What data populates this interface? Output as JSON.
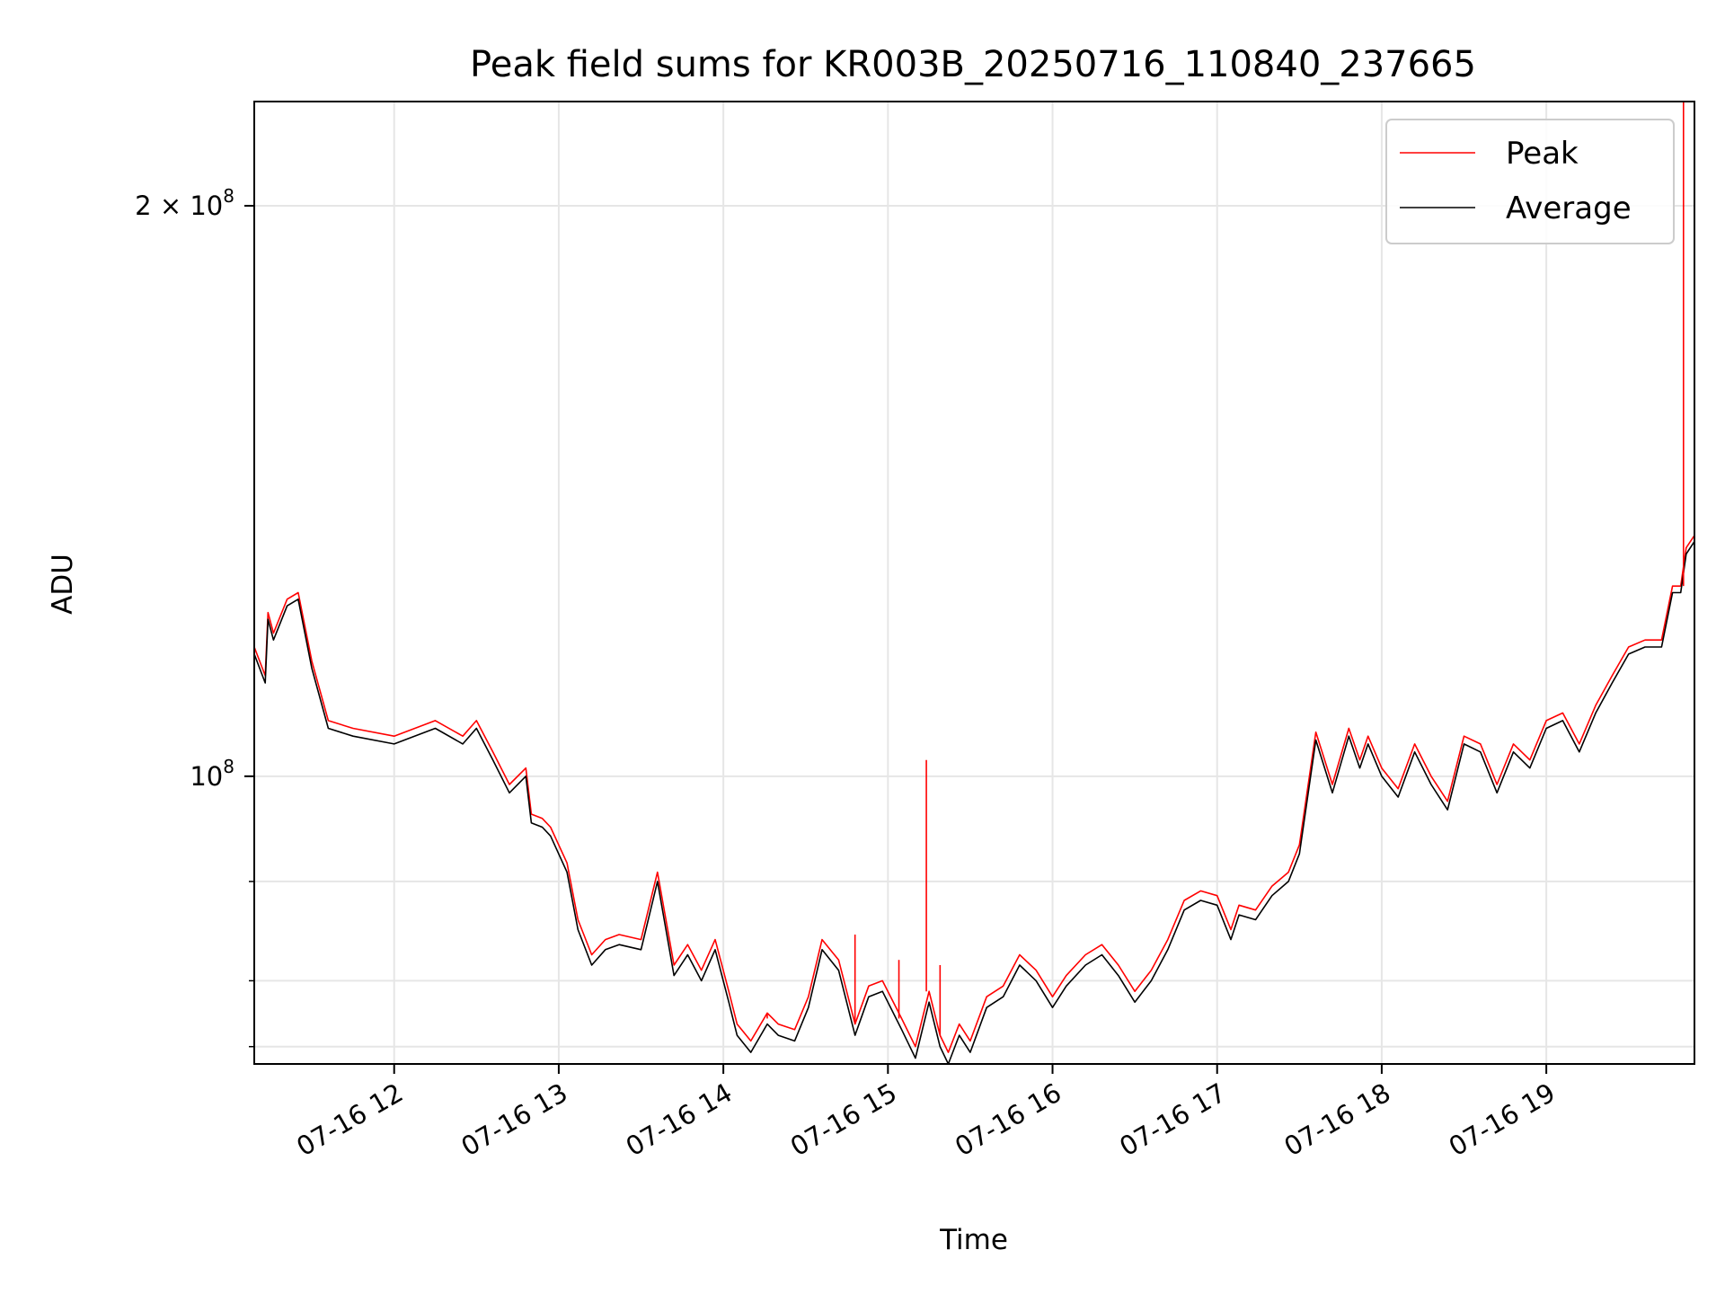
{
  "chart_data": {
    "type": "line",
    "title": "Peak field sums for KR003B_20250716_110840_237665",
    "xlabel": "Time",
    "ylabel": "ADU",
    "y_scale": "log",
    "grid": true,
    "legend_position": "top-right",
    "x_range": [
      "2025-07-16 11:09",
      "2025-07-16 19:54"
    ],
    "ylim": [
      70500000,
      227000000
    ],
    "x_ticks": [
      {
        "t": "2025-07-16 12:00",
        "label": "07-16 12"
      },
      {
        "t": "2025-07-16 13:00",
        "label": "07-16 13"
      },
      {
        "t": "2025-07-16 14:00",
        "label": "07-16 14"
      },
      {
        "t": "2025-07-16 15:00",
        "label": "07-16 15"
      },
      {
        "t": "2025-07-16 16:00",
        "label": "07-16 16"
      },
      {
        "t": "2025-07-16 17:00",
        "label": "07-16 17"
      },
      {
        "t": "2025-07-16 18:00",
        "label": "07-16 18"
      },
      {
        "t": "2025-07-16 19:00",
        "label": "07-16 19"
      }
    ],
    "y_major_ticks": [
      {
        "value": 100000000,
        "label_base": "10",
        "label_exp": "8",
        "label_prefix": ""
      },
      {
        "value": 200000000,
        "label_base": "10",
        "label_exp": "8",
        "label_prefix": "2 × "
      }
    ],
    "y_minor_ticks": [
      72000000,
      78000000,
      88000000
    ],
    "series": [
      {
        "name": "Average",
        "color": "#000000",
        "x": [
          "2025-07-16 11:09",
          "2025-07-16 11:13",
          "2025-07-16 11:14",
          "2025-07-16 11:16",
          "2025-07-16 11:21",
          "2025-07-16 11:25",
          "2025-07-16 11:30",
          "2025-07-16 11:36",
          "2025-07-16 11:45",
          "2025-07-16 12:00",
          "2025-07-16 12:15",
          "2025-07-16 12:25",
          "2025-07-16 12:30",
          "2025-07-16 12:36",
          "2025-07-16 12:42",
          "2025-07-16 12:48",
          "2025-07-16 12:50",
          "2025-07-16 12:54",
          "2025-07-16 12:57",
          "2025-07-16 13:03",
          "2025-07-16 13:07",
          "2025-07-16 13:12",
          "2025-07-16 13:17",
          "2025-07-16 13:22",
          "2025-07-16 13:30",
          "2025-07-16 13:36",
          "2025-07-16 13:42",
          "2025-07-16 13:47",
          "2025-07-16 13:52",
          "2025-07-16 13:57",
          "2025-07-16 14:02",
          "2025-07-16 14:05",
          "2025-07-16 14:10",
          "2025-07-16 14:16",
          "2025-07-16 14:20",
          "2025-07-16 14:26",
          "2025-07-16 14:31",
          "2025-07-16 14:36",
          "2025-07-16 14:42",
          "2025-07-16 14:48",
          "2025-07-16 14:53",
          "2025-07-16 14:58",
          "2025-07-16 15:05",
          "2025-07-16 15:10",
          "2025-07-16 15:15",
          "2025-07-16 15:19",
          "2025-07-16 15:22",
          "2025-07-16 15:26",
          "2025-07-16 15:30",
          "2025-07-16 15:36",
          "2025-07-16 15:42",
          "2025-07-16 15:48",
          "2025-07-16 15:54",
          "2025-07-16 16:00",
          "2025-07-16 16:05",
          "2025-07-16 16:12",
          "2025-07-16 16:18",
          "2025-07-16 16:24",
          "2025-07-16 16:30",
          "2025-07-16 16:36",
          "2025-07-16 16:42",
          "2025-07-16 16:48",
          "2025-07-16 16:54",
          "2025-07-16 17:00",
          "2025-07-16 17:05",
          "2025-07-16 17:08",
          "2025-07-16 17:14",
          "2025-07-16 17:20",
          "2025-07-16 17:26",
          "2025-07-16 17:30",
          "2025-07-16 17:36",
          "2025-07-16 17:42",
          "2025-07-16 17:48",
          "2025-07-16 17:52",
          "2025-07-16 17:55",
          "2025-07-16 18:00",
          "2025-07-16 18:06",
          "2025-07-16 18:12",
          "2025-07-16 18:18",
          "2025-07-16 18:24",
          "2025-07-16 18:30",
          "2025-07-16 18:36",
          "2025-07-16 18:42",
          "2025-07-16 18:48",
          "2025-07-16 18:54",
          "2025-07-16 19:00",
          "2025-07-16 19:06",
          "2025-07-16 19:12",
          "2025-07-16 19:18",
          "2025-07-16 19:24",
          "2025-07-16 19:30",
          "2025-07-16 19:36",
          "2025-07-16 19:42",
          "2025-07-16 19:46",
          "2025-07-16 19:49",
          "2025-07-16 19:51",
          "2025-07-16 19:54"
        ],
        "y": [
          116000000,
          112000000,
          121000000,
          118000000,
          123000000,
          124000000,
          114000000,
          106000000,
          105000000,
          104000000,
          106000000,
          104000000,
          106000000,
          102000000,
          98000000,
          100000000,
          94500000,
          94000000,
          93000000,
          89000000,
          83000000,
          79500000,
          81000000,
          81500000,
          81000000,
          88000000,
          78500000,
          80500000,
          78000000,
          81000000,
          76000000,
          73000000,
          71500000,
          74000000,
          73000000,
          72500000,
          75500000,
          81000000,
          79000000,
          73000000,
          76500000,
          77000000,
          73500000,
          71000000,
          76000000,
          72000000,
          70500000,
          73000000,
          71500000,
          75500000,
          76500000,
          79500000,
          78000000,
          75500000,
          77500000,
          79500000,
          80500000,
          78500000,
          76000000,
          78000000,
          81000000,
          85000000,
          86000000,
          85500000,
          82000000,
          84500000,
          84000000,
          86500000,
          88000000,
          91000000,
          104500000,
          98000000,
          105000000,
          101000000,
          104000000,
          100000000,
          97500000,
          103000000,
          99000000,
          96000000,
          104000000,
          103000000,
          98000000,
          103000000,
          101000000,
          106000000,
          107000000,
          103000000,
          108000000,
          112000000,
          116000000,
          117000000,
          117000000,
          125000000,
          125000000,
          131000000,
          133000000
        ]
      },
      {
        "name": "Peak",
        "color": "#ff0000",
        "x": [
          "2025-07-16 11:09",
          "2025-07-16 11:13",
          "2025-07-16 11:14",
          "2025-07-16 11:16",
          "2025-07-16 11:21",
          "2025-07-16 11:25",
          "2025-07-16 11:30",
          "2025-07-16 11:36",
          "2025-07-16 11:45",
          "2025-07-16 12:00",
          "2025-07-16 12:15",
          "2025-07-16 12:25",
          "2025-07-16 12:30",
          "2025-07-16 12:36",
          "2025-07-16 12:42",
          "2025-07-16 12:48",
          "2025-07-16 12:50",
          "2025-07-16 12:54",
          "2025-07-16 12:57",
          "2025-07-16 13:03",
          "2025-07-16 13:07",
          "2025-07-16 13:12",
          "2025-07-16 13:17",
          "2025-07-16 13:22",
          "2025-07-16 13:30",
          "2025-07-16 13:36",
          "2025-07-16 13:42",
          "2025-07-16 13:47",
          "2025-07-16 13:52",
          "2025-07-16 13:57",
          "2025-07-16 14:02",
          "2025-07-16 14:05",
          "2025-07-16 14:10",
          "2025-07-16 14:16",
          "2025-07-16 14:20",
          "2025-07-16 14:26",
          "2025-07-16 14:31",
          "2025-07-16 14:36",
          "2025-07-16 14:42",
          "2025-07-16 14:48",
          "2025-07-16 14:53",
          "2025-07-16 14:58",
          "2025-07-16 15:05",
          "2025-07-16 15:10",
          "2025-07-16 15:15",
          "2025-07-16 15:19",
          "2025-07-16 15:22",
          "2025-07-16 15:26",
          "2025-07-16 15:30",
          "2025-07-16 15:36",
          "2025-07-16 15:42",
          "2025-07-16 15:48",
          "2025-07-16 15:54",
          "2025-07-16 16:00",
          "2025-07-16 16:05",
          "2025-07-16 16:12",
          "2025-07-16 16:18",
          "2025-07-16 16:24",
          "2025-07-16 16:30",
          "2025-07-16 16:36",
          "2025-07-16 16:42",
          "2025-07-16 16:48",
          "2025-07-16 16:54",
          "2025-07-16 17:00",
          "2025-07-16 17:05",
          "2025-07-16 17:08",
          "2025-07-16 17:14",
          "2025-07-16 17:20",
          "2025-07-16 17:26",
          "2025-07-16 17:30",
          "2025-07-16 17:36",
          "2025-07-16 17:42",
          "2025-07-16 17:48",
          "2025-07-16 17:52",
          "2025-07-16 17:55",
          "2025-07-16 18:00",
          "2025-07-16 18:06",
          "2025-07-16 18:12",
          "2025-07-16 18:18",
          "2025-07-16 18:24",
          "2025-07-16 18:30",
          "2025-07-16 18:36",
          "2025-07-16 18:42",
          "2025-07-16 18:48",
          "2025-07-16 18:54",
          "2025-07-16 19:00",
          "2025-07-16 19:06",
          "2025-07-16 19:12",
          "2025-07-16 19:18",
          "2025-07-16 19:24",
          "2025-07-16 19:30",
          "2025-07-16 19:36",
          "2025-07-16 19:42",
          "2025-07-16 19:46",
          "2025-07-16 19:49",
          "2025-07-16 19:51",
          "2025-07-16 19:54"
        ],
        "y": [
          117000000,
          113000000,
          122000000,
          119000000,
          124000000,
          125000000,
          115000000,
          107000000,
          106000000,
          105000000,
          107000000,
          105000000,
          107000000,
          103000000,
          99000000,
          101000000,
          95500000,
          95000000,
          94000000,
          90000000,
          84000000,
          80500000,
          82000000,
          82500000,
          82000000,
          89000000,
          79500000,
          81500000,
          79000000,
          82000000,
          77000000,
          74000000,
          72500000,
          75000000,
          74000000,
          73500000,
          76500000,
          82000000,
          80000000,
          74000000,
          77500000,
          78000000,
          74500000,
          72000000,
          77000000,
          73000000,
          71500000,
          74000000,
          72500000,
          76500000,
          77500000,
          80500000,
          79000000,
          76500000,
          78500000,
          80500000,
          81500000,
          79500000,
          77000000,
          79000000,
          82000000,
          86000000,
          87000000,
          86500000,
          83000000,
          85500000,
          85000000,
          87500000,
          89000000,
          92000000,
          105500000,
          99000000,
          106000000,
          102000000,
          105000000,
          101000000,
          98500000,
          104000000,
          100000000,
          97000000,
          105000000,
          104000000,
          99000000,
          104000000,
          102000000,
          107000000,
          108000000,
          104000000,
          109000000,
          113000000,
          117000000,
          118000000,
          118000000,
          126000000,
          126000000,
          132000000,
          134000000
        ]
      }
    ],
    "annotations": [
      {
        "type": "spike",
        "series": "Peak",
        "x": "2025-07-16 14:16",
        "y": 74500000
      },
      {
        "type": "spike",
        "series": "Peak",
        "x": "2025-07-16 14:48",
        "y": 82500000
      },
      {
        "type": "spike",
        "series": "Peak",
        "x": "2025-07-16 15:04",
        "y": 80000000
      },
      {
        "type": "spike",
        "series": "Peak",
        "x": "2025-07-16 15:14",
        "y": 102000000
      },
      {
        "type": "spike",
        "series": "Peak",
        "x": "2025-07-16 15:19",
        "y": 79500000
      },
      {
        "type": "spike",
        "series": "Peak",
        "x": "2025-07-16 19:50",
        "y": 227000000
      }
    ]
  },
  "legend": {
    "peak_label": "Peak",
    "average_label": "Average",
    "peak_color": "#ff0000",
    "average_color": "#000000"
  },
  "grid_color": "#e6e6e6"
}
